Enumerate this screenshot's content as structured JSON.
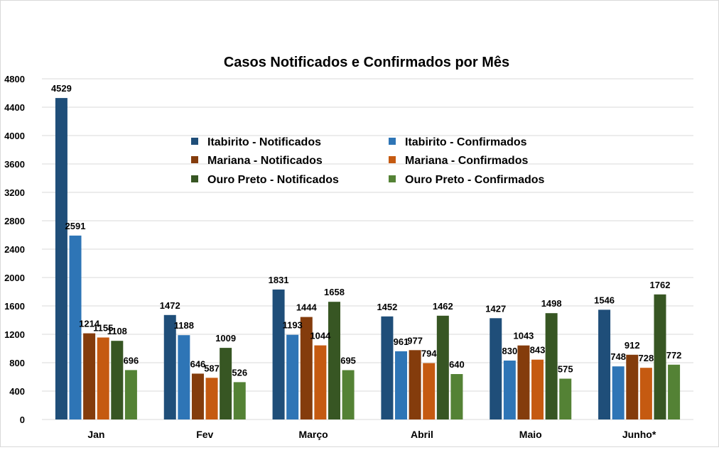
{
  "chart_data": {
    "type": "bar",
    "title": "Casos Notificados e Confirmados por Mês",
    "xlabel": "",
    "ylabel": "",
    "ylim": [
      0,
      4800
    ],
    "yticks": [
      0,
      400,
      800,
      1200,
      1600,
      2000,
      2400,
      2800,
      3200,
      3600,
      4000,
      4400,
      4800
    ],
    "categories": [
      "Jan",
      "Fev",
      "Março",
      "Abril",
      "Maio",
      "Junho*"
    ],
    "grid": true,
    "legend_position": "inside-top-center",
    "series": [
      {
        "name": "Itabirito - Notificados",
        "color": "#1f4e79",
        "values": [
          4529,
          1472,
          1831,
          1452,
          1427,
          1546
        ]
      },
      {
        "name": "Itabirito - Confirmados",
        "color": "#2e75b6",
        "values": [
          2591,
          1188,
          1193,
          961,
          830,
          748
        ]
      },
      {
        "name": "Mariana - Notificados",
        "color": "#843c0c",
        "values": [
          1214,
          646,
          1444,
          977,
          1043,
          912
        ]
      },
      {
        "name": "Mariana - Confirmados",
        "color": "#c55a11",
        "values": [
          1155,
          587,
          1044,
          794,
          843,
          728
        ]
      },
      {
        "name": "Ouro Preto - Notificados",
        "color": "#375623",
        "values": [
          1108,
          1009,
          1658,
          1462,
          1498,
          1762
        ]
      },
      {
        "name": "Ouro Preto - Confirmados",
        "color": "#548235",
        "values": [
          696,
          526,
          695,
          640,
          575,
          772
        ]
      }
    ]
  }
}
